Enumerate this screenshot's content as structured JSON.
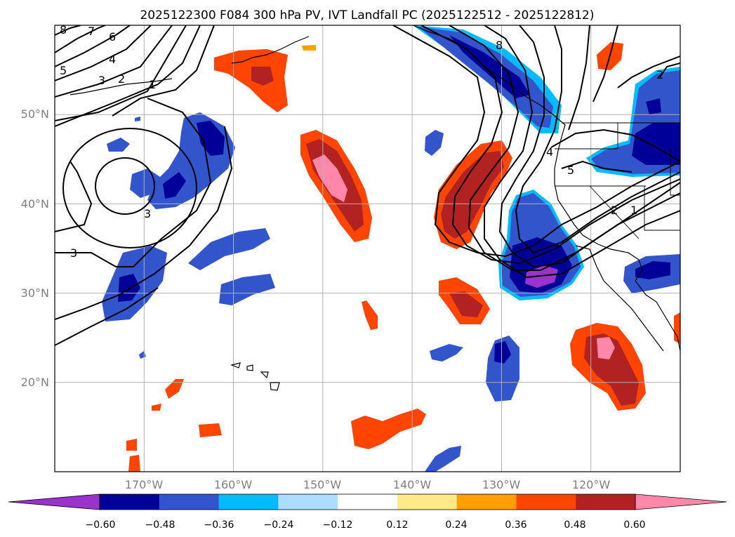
{
  "title": "2025122300 F084 300 hPa PV, IVT Landfall PC (2025122512 - 2025122812)",
  "map": {
    "lon_range": [
      -180,
      -110
    ],
    "lat_range": [
      10,
      60
    ],
    "lat_ticks": [
      {
        "lat": 50,
        "label": "50°N"
      },
      {
        "lat": 40,
        "label": "40°N"
      },
      {
        "lat": 30,
        "label": "30°N"
      },
      {
        "lat": 20,
        "label": "20°N"
      }
    ],
    "lon_ticks": [
      {
        "lon": -170,
        "label": "170°W"
      },
      {
        "lon": -160,
        "label": "160°W"
      },
      {
        "lon": -150,
        "label": "150°W"
      },
      {
        "lon": -140,
        "label": "140°W"
      },
      {
        "lon": -130,
        "label": "130°W"
      },
      {
        "lon": -120,
        "label": "120°W"
      }
    ],
    "gridlines": true,
    "contour_labels": [
      "8",
      "7",
      "6",
      "5",
      "4",
      "3",
      "2",
      "1",
      "3",
      "3",
      "4",
      "5",
      "2",
      "1",
      "8",
      "2"
    ]
  },
  "colorbar": {
    "extend": "both",
    "colors": [
      "#9933cc",
      "#000099",
      "#3355cc",
      "#00bbff",
      "#aaddff",
      "#ffffff",
      "#ffe98a",
      "#ff9f00",
      "#ff4500",
      "#b22222",
      "#ff88aa"
    ],
    "tick_labels": [
      "−0.60",
      "−0.48",
      "−0.36",
      "−0.24",
      "−0.12",
      "0.12",
      "0.24",
      "0.36",
      "0.48",
      "0.60"
    ]
  }
}
